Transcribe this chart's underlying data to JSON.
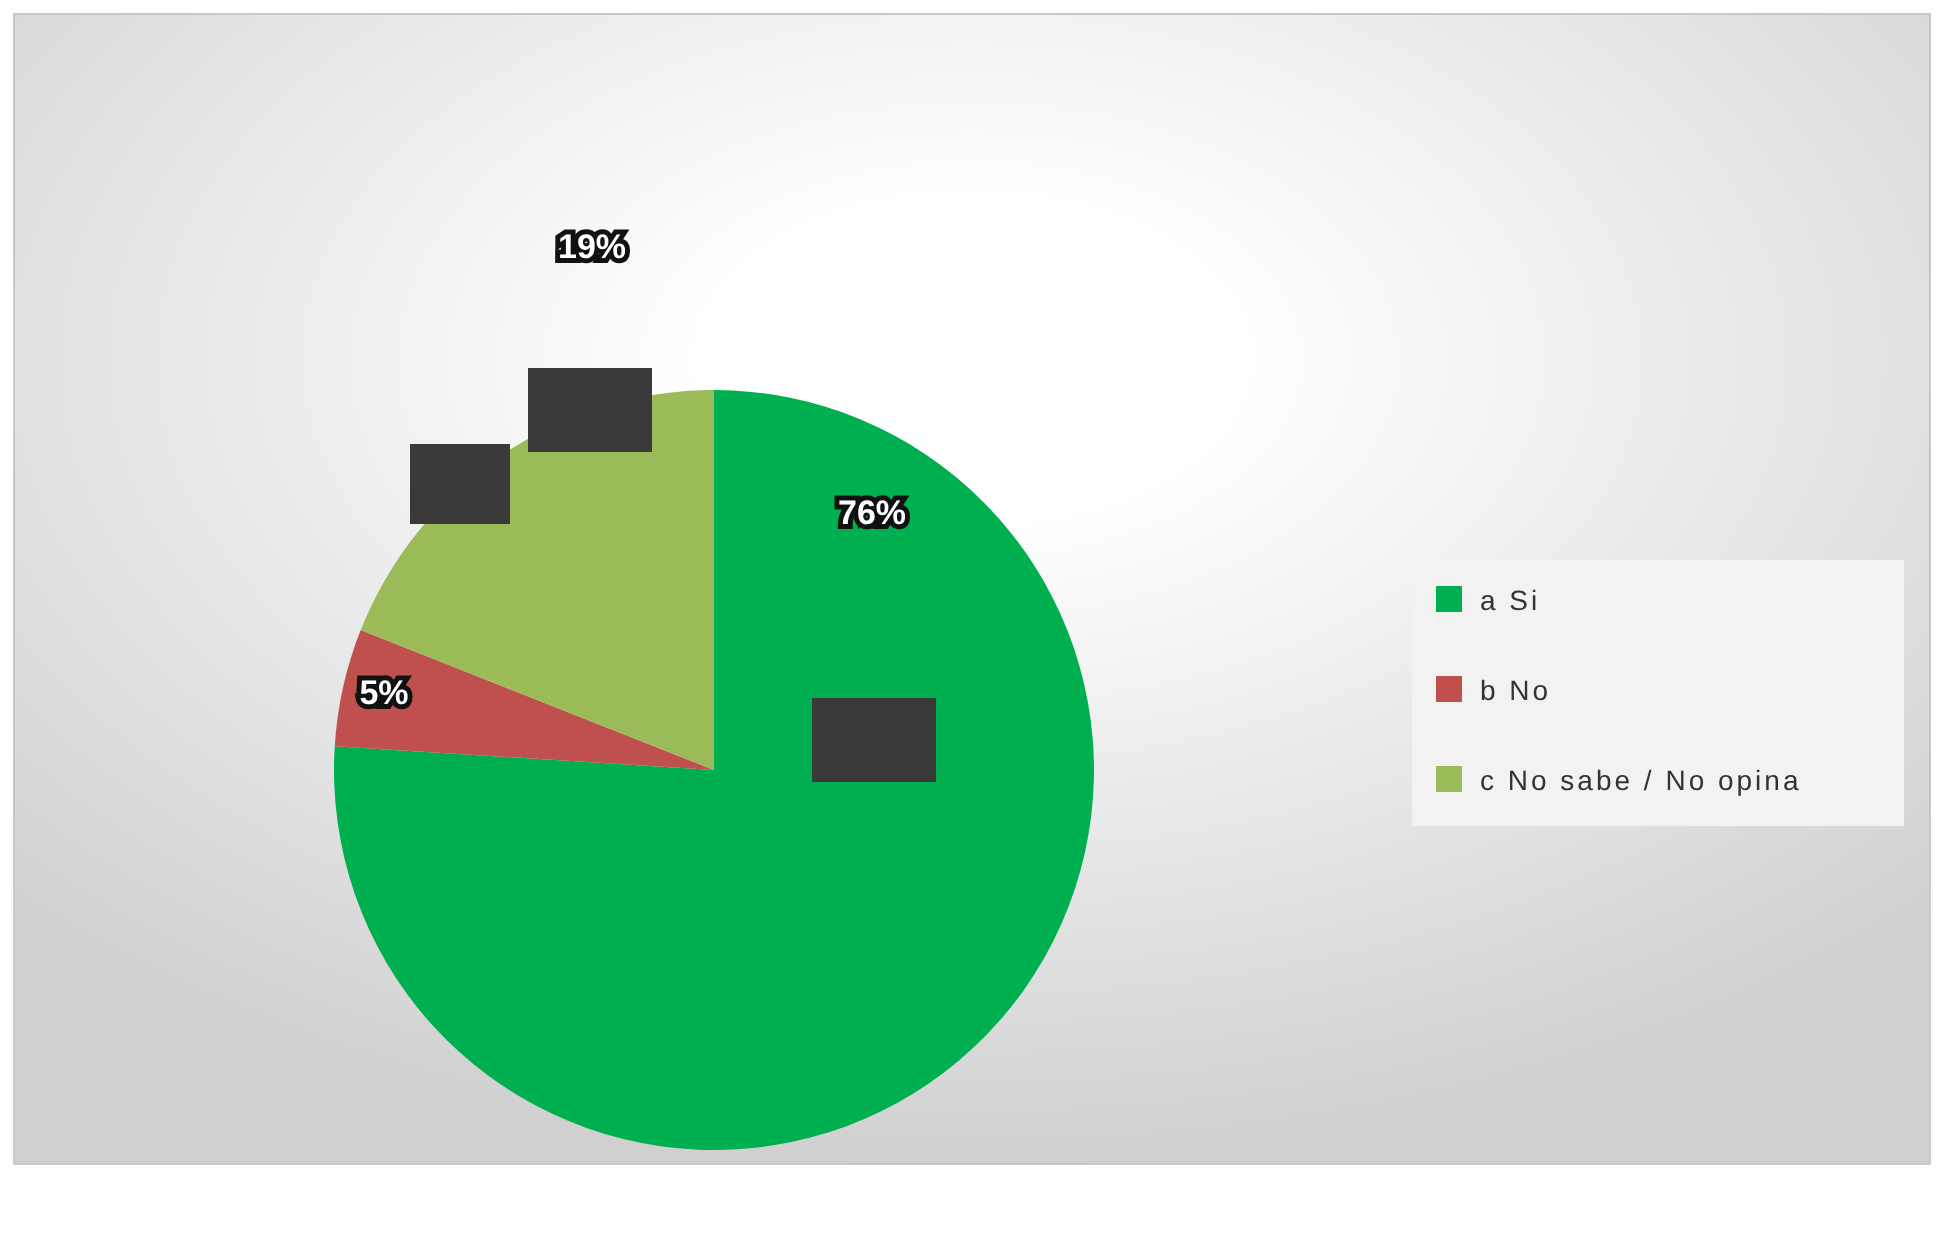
{
  "chart_data": {
    "type": "pie",
    "categories": [
      "a Si",
      "b No",
      "c No sabe / No opina"
    ],
    "values": [
      76,
      5,
      19
    ],
    "colors": [
      "#00b050",
      "#c0504d",
      "#9bbb59"
    ],
    "value_labels": [
      "76%",
      "5%",
      "19%"
    ],
    "legend": "right"
  }
}
